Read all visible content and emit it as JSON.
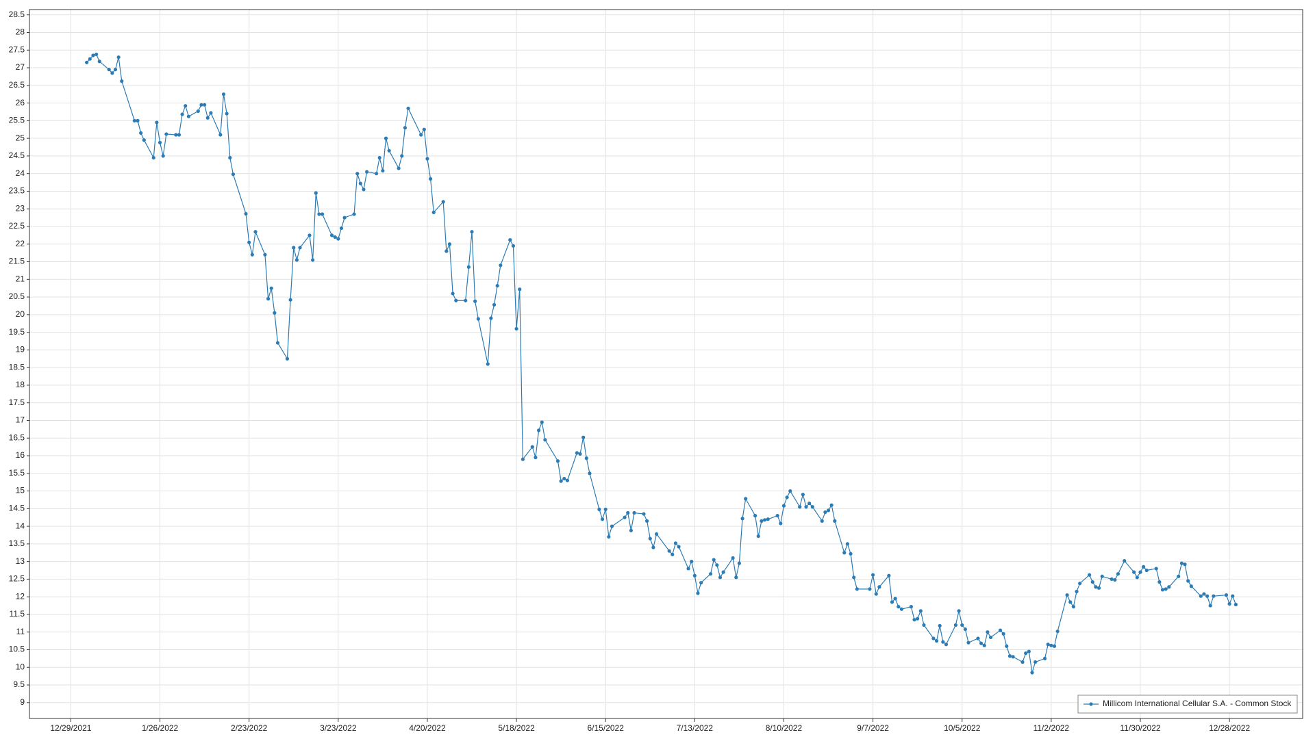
{
  "chart_data": {
    "type": "line",
    "x": [
      "1/3/2022",
      "1/4/2022",
      "1/5/2022",
      "1/6/2022",
      "1/7/2022",
      "1/10/2022",
      "1/11/2022",
      "1/12/2022",
      "1/13/2022",
      "1/14/2022",
      "1/18/2022",
      "1/19/2022",
      "1/20/2022",
      "1/21/2022",
      "1/24/2022",
      "1/25/2022",
      "1/26/2022",
      "1/27/2022",
      "1/28/2022",
      "1/31/2022",
      "2/1/2022",
      "2/2/2022",
      "2/3/2022",
      "2/4/2022",
      "2/7/2022",
      "2/8/2022",
      "2/9/2022",
      "2/10/2022",
      "2/11/2022",
      "2/14/2022",
      "2/15/2022",
      "2/16/2022",
      "2/17/2022",
      "2/18/2022",
      "2/22/2022",
      "2/23/2022",
      "2/24/2022",
      "2/25/2022",
      "2/28/2022",
      "3/1/2022",
      "3/2/2022",
      "3/3/2022",
      "3/4/2022",
      "3/7/2022",
      "3/8/2022",
      "3/9/2022",
      "3/10/2022",
      "3/11/2022",
      "3/14/2022",
      "3/15/2022",
      "3/16/2022",
      "3/17/2022",
      "3/18/2022",
      "3/21/2022",
      "3/22/2022",
      "3/23/2022",
      "3/24/2022",
      "3/25/2022",
      "3/28/2022",
      "3/29/2022",
      "3/30/2022",
      "3/31/2022",
      "4/1/2022",
      "4/4/2022",
      "4/5/2022",
      "4/6/2022",
      "4/7/2022",
      "4/8/2022",
      "4/11/2022",
      "4/12/2022",
      "4/13/2022",
      "4/14/2022",
      "4/18/2022",
      "4/19/2022",
      "4/20/2022",
      "4/21/2022",
      "4/22/2022",
      "4/25/2022",
      "4/26/2022",
      "4/27/2022",
      "4/28/2022",
      "4/29/2022",
      "5/2/2022",
      "5/3/2022",
      "5/4/2022",
      "5/5/2022",
      "5/6/2022",
      "5/9/2022",
      "5/10/2022",
      "5/11/2022",
      "5/12/2022",
      "5/13/2022",
      "5/16/2022",
      "5/17/2022",
      "5/18/2022",
      "5/19/2022",
      "5/20/2022",
      "5/23/2022",
      "5/24/2022",
      "5/25/2022",
      "5/26/2022",
      "5/27/2022",
      "5/31/2022",
      "6/1/2022",
      "6/2/2022",
      "6/3/2022",
      "6/6/2022",
      "6/7/2022",
      "6/8/2022",
      "6/9/2022",
      "6/10/2022",
      "6/13/2022",
      "6/14/2022",
      "6/15/2022",
      "6/16/2022",
      "6/17/2022",
      "6/21/2022",
      "6/22/2022",
      "6/23/2022",
      "6/24/2022",
      "6/27/2022",
      "6/28/2022",
      "6/29/2022",
      "6/30/2022",
      "7/1/2022",
      "7/5/2022",
      "7/6/2022",
      "7/7/2022",
      "7/8/2022",
      "7/11/2022",
      "7/12/2022",
      "7/13/2022",
      "7/14/2022",
      "7/15/2022",
      "7/18/2022",
      "7/19/2022",
      "7/20/2022",
      "7/21/2022",
      "7/22/2022",
      "7/25/2022",
      "7/26/2022",
      "7/27/2022",
      "7/28/2022",
      "7/29/2022",
      "8/1/2022",
      "8/2/2022",
      "8/3/2022",
      "8/4/2022",
      "8/5/2022",
      "8/8/2022",
      "8/9/2022",
      "8/10/2022",
      "8/11/2022",
      "8/12/2022",
      "8/15/2022",
      "8/16/2022",
      "8/17/2022",
      "8/18/2022",
      "8/19/2022",
      "8/22/2022",
      "8/23/2022",
      "8/24/2022",
      "8/25/2022",
      "8/26/2022",
      "8/29/2022",
      "8/30/2022",
      "8/31/2022",
      "9/1/2022",
      "9/2/2022",
      "9/6/2022",
      "9/7/2022",
      "9/8/2022",
      "9/9/2022",
      "9/12/2022",
      "9/13/2022",
      "9/14/2022",
      "9/15/2022",
      "9/16/2022",
      "9/19/2022",
      "9/20/2022",
      "9/21/2022",
      "9/22/2022",
      "9/23/2022",
      "9/26/2022",
      "9/27/2022",
      "9/28/2022",
      "9/29/2022",
      "9/30/2022",
      "10/3/2022",
      "10/4/2022",
      "10/5/2022",
      "10/6/2022",
      "10/7/2022",
      "10/10/2022",
      "10/11/2022",
      "10/12/2022",
      "10/13/2022",
      "10/14/2022",
      "10/17/2022",
      "10/18/2022",
      "10/19/2022",
      "10/20/2022",
      "10/21/2022",
      "10/24/2022",
      "10/25/2022",
      "10/26/2022",
      "10/27/2022",
      "10/28/2022",
      "10/31/2022",
      "11/1/2022",
      "11/2/2022",
      "11/3/2022",
      "11/4/2022",
      "11/7/2022",
      "11/8/2022",
      "11/9/2022",
      "11/10/2022",
      "11/11/2022",
      "11/14/2022",
      "11/15/2022",
      "11/16/2022",
      "11/17/2022",
      "11/18/2022",
      "11/21/2022",
      "11/22/2022",
      "11/23/2022",
      "11/25/2022",
      "11/28/2022",
      "11/29/2022",
      "11/30/2022",
      "12/1/2022",
      "12/2/2022",
      "12/5/2022",
      "12/6/2022",
      "12/7/2022",
      "12/8/2022",
      "12/9/2022",
      "12/12/2022",
      "12/13/2022",
      "12/14/2022",
      "12/15/2022",
      "12/16/2022",
      "12/19/2022",
      "12/20/2022",
      "12/21/2022",
      "12/22/2022",
      "12/23/2022",
      "12/27/2022",
      "12/28/2022",
      "12/29/2022",
      "12/30/2022"
    ],
    "series": [
      {
        "name": "Millicom International Cellular S.A. - Common Stock",
        "color": "#2b7bb4",
        "values": [
          27.15,
          27.25,
          27.35,
          27.38,
          27.18,
          26.95,
          26.85,
          26.95,
          27.3,
          26.62,
          25.5,
          25.5,
          25.15,
          24.95,
          24.45,
          25.45,
          24.88,
          24.5,
          25.12,
          25.1,
          25.1,
          25.68,
          25.92,
          25.62,
          25.77,
          25.95,
          25.95,
          25.58,
          25.72,
          25.1,
          26.25,
          25.7,
          24.45,
          23.98,
          22.86,
          22.05,
          21.7,
          22.35,
          21.7,
          20.45,
          20.75,
          20.05,
          19.2,
          18.75,
          20.42,
          21.9,
          21.55,
          21.9,
          22.25,
          21.55,
          23.45,
          22.85,
          22.85,
          22.25,
          22.2,
          22.15,
          22.45,
          22.75,
          22.85,
          24.0,
          23.72,
          23.55,
          24.05,
          24.0,
          24.45,
          24.08,
          25.0,
          24.65,
          24.15,
          24.5,
          25.3,
          25.85,
          25.1,
          25.25,
          24.42,
          23.85,
          22.9,
          23.2,
          21.8,
          22.0,
          20.6,
          20.4,
          20.4,
          21.35,
          22.35,
          20.38,
          19.88,
          18.6,
          19.9,
          20.28,
          20.82,
          21.4,
          22.12,
          21.95,
          19.6,
          20.72,
          15.9,
          16.25,
          15.95,
          16.72,
          16.95,
          16.45,
          15.85,
          15.28,
          15.35,
          15.3,
          16.08,
          16.05,
          16.52,
          15.93,
          15.5,
          14.48,
          14.2,
          14.48,
          13.7,
          14.0,
          14.25,
          14.38,
          13.88,
          14.38,
          14.35,
          14.15,
          13.65,
          13.4,
          13.78,
          13.3,
          13.2,
          13.52,
          13.42,
          12.8,
          13.0,
          12.6,
          12.1,
          12.4,
          12.65,
          13.05,
          12.9,
          12.55,
          12.7,
          13.1,
          12.55,
          12.95,
          14.22,
          14.78,
          14.3,
          13.72,
          14.15,
          14.18,
          14.2,
          14.3,
          14.08,
          14.58,
          14.82,
          15.0,
          14.55,
          14.9,
          14.55,
          14.65,
          14.55,
          14.15,
          14.4,
          14.45,
          14.6,
          14.15,
          13.25,
          13.5,
          13.22,
          12.55,
          12.22,
          12.22,
          12.62,
          12.08,
          12.28,
          12.6,
          11.85,
          11.95,
          11.72,
          11.65,
          11.72,
          11.35,
          11.38,
          11.6,
          11.2,
          10.82,
          10.75,
          11.18,
          10.72,
          10.65,
          11.2,
          11.6,
          11.2,
          11.08,
          10.7,
          10.82,
          10.68,
          10.62,
          11.0,
          10.85,
          11.05,
          10.95,
          10.6,
          10.32,
          10.3,
          10.15,
          10.4,
          10.45,
          9.85,
          10.15,
          10.25,
          10.65,
          10.62,
          10.6,
          11.02,
          12.05,
          11.85,
          11.72,
          12.15,
          12.38,
          12.62,
          12.42,
          12.28,
          12.25,
          12.58,
          12.5,
          12.48,
          12.65,
          13.02,
          12.7,
          12.55,
          12.7,
          12.85,
          12.75,
          12.8,
          12.42,
          12.2,
          12.22,
          12.28,
          12.58,
          12.95,
          12.92,
          12.45,
          12.3,
          12.02,
          12.08,
          12.02,
          11.75,
          12.02,
          12.05,
          11.8,
          12.02,
          11.78
        ]
      }
    ],
    "xlim": [
      "12/16/2021",
      "1/20/2023"
    ],
    "xticks": [
      "12/29/2021",
      "1/26/2022",
      "2/23/2022",
      "3/23/2022",
      "4/20/2022",
      "5/18/2022",
      "6/15/2022",
      "7/13/2022",
      "8/10/2022",
      "9/7/2022",
      "10/5/2022",
      "11/2/2022",
      "11/30/2022",
      "12/28/2022"
    ],
    "ylim": [
      8.55,
      28.65
    ],
    "yticks": [
      9,
      9.5,
      10,
      10.5,
      11,
      11.5,
      12,
      12.5,
      13,
      13.5,
      14,
      14.5,
      15,
      15.5,
      16,
      16.5,
      17,
      17.5,
      18,
      18.5,
      19,
      19.5,
      20,
      20.5,
      21,
      21.5,
      22,
      22.5,
      23,
      23.5,
      24,
      24.5,
      25,
      25.5,
      26,
      26.5,
      27,
      27.5,
      28,
      28.5
    ],
    "grid": true,
    "legend": "lower right"
  }
}
